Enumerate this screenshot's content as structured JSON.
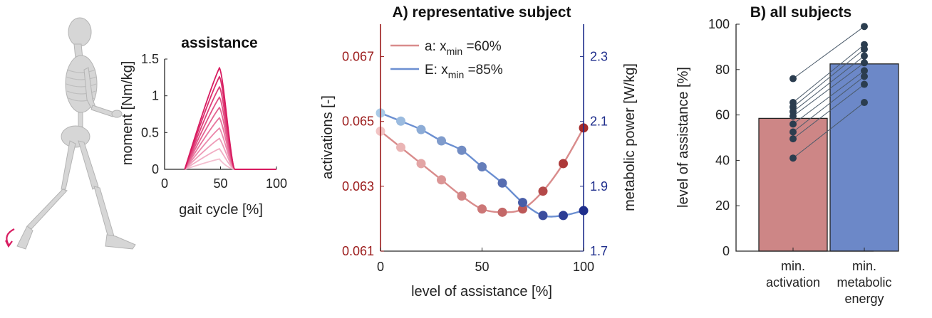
{
  "chart_data": [
    {
      "panel": "assistance",
      "type": "line",
      "title": "assistance",
      "xlabel": "gait cycle [%]",
      "ylabel": "moment [Nm/kg]",
      "xlim": [
        0,
        100
      ],
      "ylim": [
        0,
        1.5
      ],
      "x_ticks": [
        "0",
        "50",
        "100"
      ],
      "y_ticks": [
        "0",
        "0.5",
        "1",
        "1.5"
      ],
      "onset_x": 18,
      "peak_x": 49,
      "end_x": 63,
      "peak_values": [
        0.14,
        0.28,
        0.42,
        0.56,
        0.7,
        0.84,
        0.98,
        1.12,
        1.26,
        1.38
      ],
      "colors": {
        "light": "#f4bfd0",
        "dark": "#d81b60"
      }
    },
    {
      "panel": "A",
      "type": "line",
      "title": "A) representative subject",
      "xlabel": "level of assistance [%]",
      "ylabel_left": "activations [-]",
      "ylabel_right": "metabolic power [W/kg]",
      "xlim": [
        0,
        100
      ],
      "ylim_left": [
        0.061,
        0.068
      ],
      "ylim_right": [
        1.7,
        2.4
      ],
      "x_ticks": [
        "0",
        "50",
        "100"
      ],
      "y_ticks_left": [
        "0.061",
        "0.063",
        "0.065",
        "0.067"
      ],
      "y_ticks_right": [
        "1.7",
        "1.9",
        "2.1",
        "2.3"
      ],
      "legend": [
        {
          "prefix": "a: x",
          "sub": "min",
          "suffix": " =60%"
        },
        {
          "prefix": "E: x",
          "sub": "min",
          "suffix": " =85%"
        }
      ],
      "legend_placement": "top-left",
      "series": [
        {
          "axis": "left",
          "x": [
            0,
            10,
            20,
            30,
            40,
            50,
            60,
            70,
            80,
            90,
            100
          ],
          "values": [
            0.0647,
            0.0642,
            0.0637,
            0.0632,
            0.0627,
            0.0623,
            0.0622,
            0.0623,
            0.06285,
            0.0637,
            0.0648
          ],
          "line_color": "#d98c8c",
          "marker_light": "#f2c4c4",
          "marker_dark": "#a52a2a"
        },
        {
          "axis": "right",
          "x": [
            0,
            10,
            20,
            30,
            40,
            50,
            60,
            70,
            80,
            90,
            100
          ],
          "values": [
            2.126,
            2.101,
            2.075,
            2.04,
            2.011,
            1.96,
            1.91,
            1.85,
            1.81,
            1.81,
            1.825
          ],
          "line_color": "#6b8fd1",
          "marker_light": "#a9cbe8",
          "marker_dark": "#1f2e8c"
        }
      ],
      "colors": {
        "left_axis": "#9b1a1a",
        "right_axis": "#1f2e8c"
      }
    },
    {
      "panel": "B",
      "type": "bar",
      "title": "B) all subjects",
      "ylabel": "level of assistance [%]",
      "ylim": [
        0,
        100
      ],
      "y_ticks": [
        "0",
        "20",
        "40",
        "60",
        "80",
        "100"
      ],
      "categories": [
        [
          "min.",
          "activation"
        ],
        [
          "min.",
          "metabolic",
          "energy"
        ]
      ],
      "values": [
        58.5,
        82.5
      ],
      "bar_colors": [
        "#cd8686",
        "#6c88c8"
      ],
      "subjects": {
        "activation": [
          76,
          65.5,
          63.5,
          61.5,
          59.5,
          56,
          52.5,
          49.5,
          41
        ],
        "metabolic": [
          99,
          91,
          89,
          86,
          83,
          79.5,
          77,
          73.5,
          65.5
        ]
      },
      "dot_color": "#2b3d4f"
    }
  ]
}
